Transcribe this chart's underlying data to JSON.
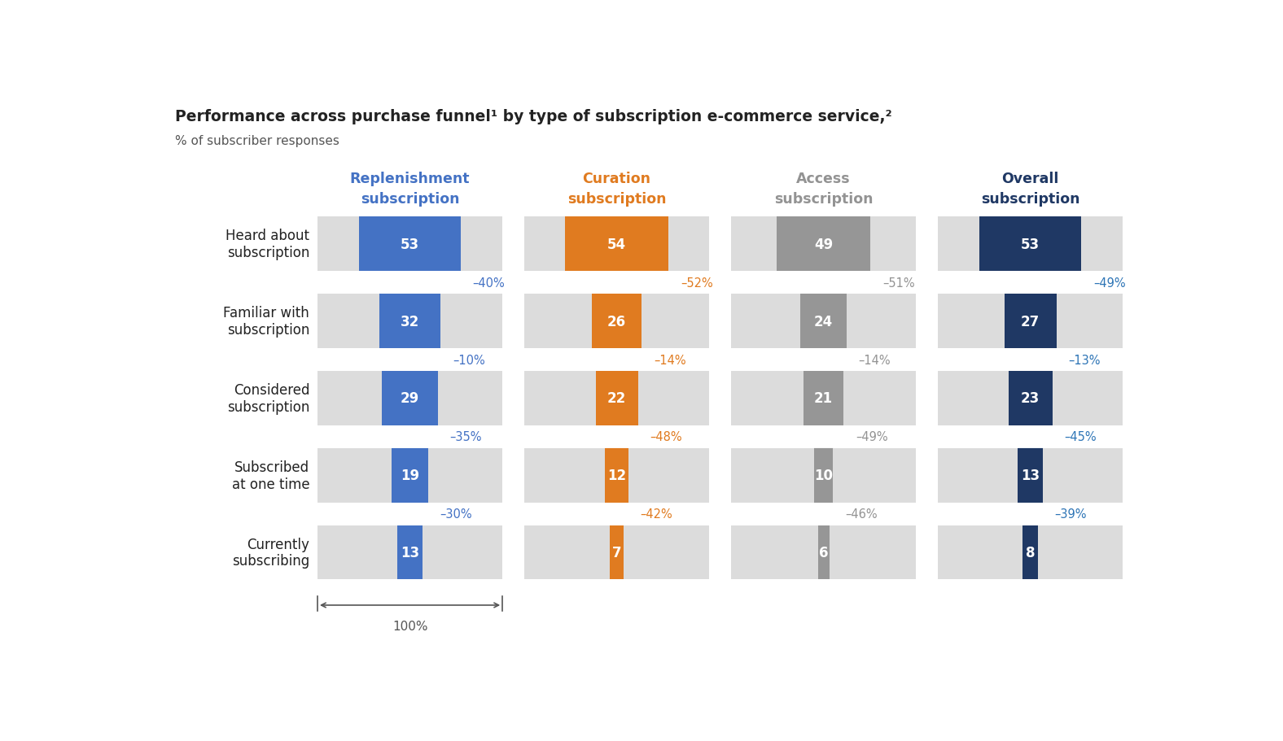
{
  "title": "Performance across purchase funnel¹ by type of subscription e-commerce service,²",
  "subtitle": "% of subscriber responses",
  "categories": [
    "Heard about\nsubscription",
    "Familiar with\nsubscription",
    "Considered\nsubscription",
    "Subscribed\nat one time",
    "Currently\nsubscribing"
  ],
  "columns": [
    {
      "name": "Replenishment\nsubscription",
      "name_color": "#4472C4",
      "values": [
        53,
        32,
        29,
        19,
        13
      ],
      "bar_color": "#4472C4",
      "funnel_color": "#BDD0E9",
      "pct_changes": [
        "–40%",
        "–10%",
        "–35%",
        "–30%"
      ],
      "pct_color": "#4472C4"
    },
    {
      "name": "Curation\nsubscription",
      "name_color": "#E07B20",
      "values": [
        54,
        26,
        22,
        12,
        7
      ],
      "bar_color": "#E07B20",
      "funnel_color": "#F5C99A",
      "pct_changes": [
        "–52%",
        "–14%",
        "–48%",
        "–42%"
      ],
      "pct_color": "#E07B20"
    },
    {
      "name": "Access\nsubscription",
      "name_color": "#939393",
      "values": [
        49,
        24,
        21,
        10,
        6
      ],
      "bar_color": "#969696",
      "funnel_color": "#C5C5C5",
      "pct_changes": [
        "–51%",
        "–14%",
        "–49%",
        "–46%"
      ],
      "pct_color": "#939393"
    },
    {
      "name": "Overall\nsubscription",
      "name_color": "#1F3864",
      "values": [
        53,
        27,
        23,
        13,
        8
      ],
      "bar_color": "#1F3864",
      "funnel_color": "#7DA3C8",
      "pct_changes": [
        "–49%",
        "–13%",
        "–45%",
        "–39%"
      ],
      "pct_color": "#2E75B6"
    }
  ],
  "bg_color": "#FFFFFF",
  "row_bg_color": "#DCDCDC",
  "max_value": 54,
  "title_fontsize": 13.5,
  "subtitle_fontsize": 11,
  "label_fontsize": 12
}
